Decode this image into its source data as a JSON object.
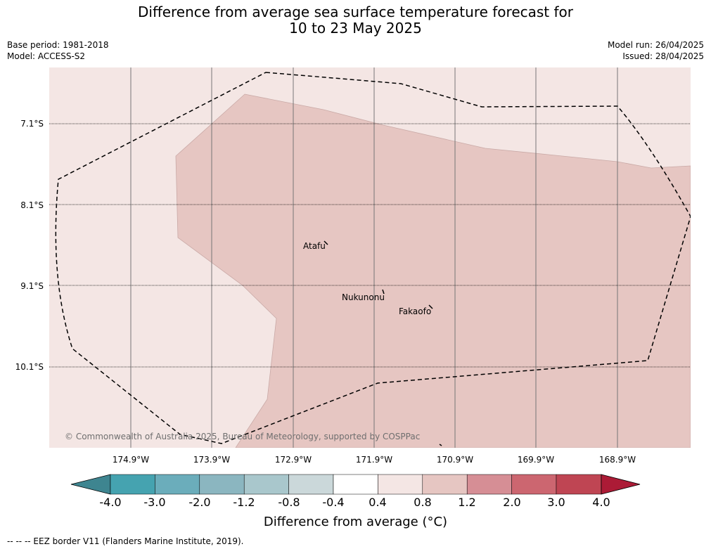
{
  "title": {
    "line1": "Difference from average sea surface temperature forecast for",
    "line2": "10 to 23 May 2025"
  },
  "meta": {
    "base_period": "Base period: 1981-2018",
    "model": "Model: ACCESS-S2",
    "model_run": "Model run: 26/04/2025",
    "issued": "Issued: 28/04/2025"
  },
  "map": {
    "lat_labels": [
      "7.1°S",
      "8.1°S",
      "9.1°S",
      "10.1°S"
    ],
    "lon_labels": [
      "174.9°W",
      "173.9°W",
      "172.9°W",
      "171.9°W",
      "170.9°W",
      "169.9°W",
      "168.9°W"
    ],
    "places": [
      "Atafu",
      "Nukunonu",
      "Fakaofo"
    ],
    "copyright": "© Commonwealth of Australia 2025, Bureau of Meteorology, supported by COSPPac",
    "region_colors": {
      "light": "#f4e6e4",
      "medium": "#e6c6c2"
    }
  },
  "colorbar": {
    "ticks": [
      "-4.0",
      "-3.0",
      "-2.0",
      "-1.2",
      "-0.8",
      "-0.4",
      "0.4",
      "0.8",
      "1.2",
      "2.0",
      "3.0",
      "4.0"
    ],
    "colors": [
      "#3e8590",
      "#45a3b0",
      "#6badbb",
      "#8bb6c0",
      "#a9c7cc",
      "#cbd8da",
      "#ffffff",
      "#f4e6e4",
      "#e6c6c2",
      "#d68e95",
      "#cc6670",
      "#bf4553",
      "#ac1b36"
    ],
    "label": "Difference from average (°C)"
  },
  "footnote": "--  --  -- EEZ border V11 (Flanders Marine Institute, 2019)."
}
